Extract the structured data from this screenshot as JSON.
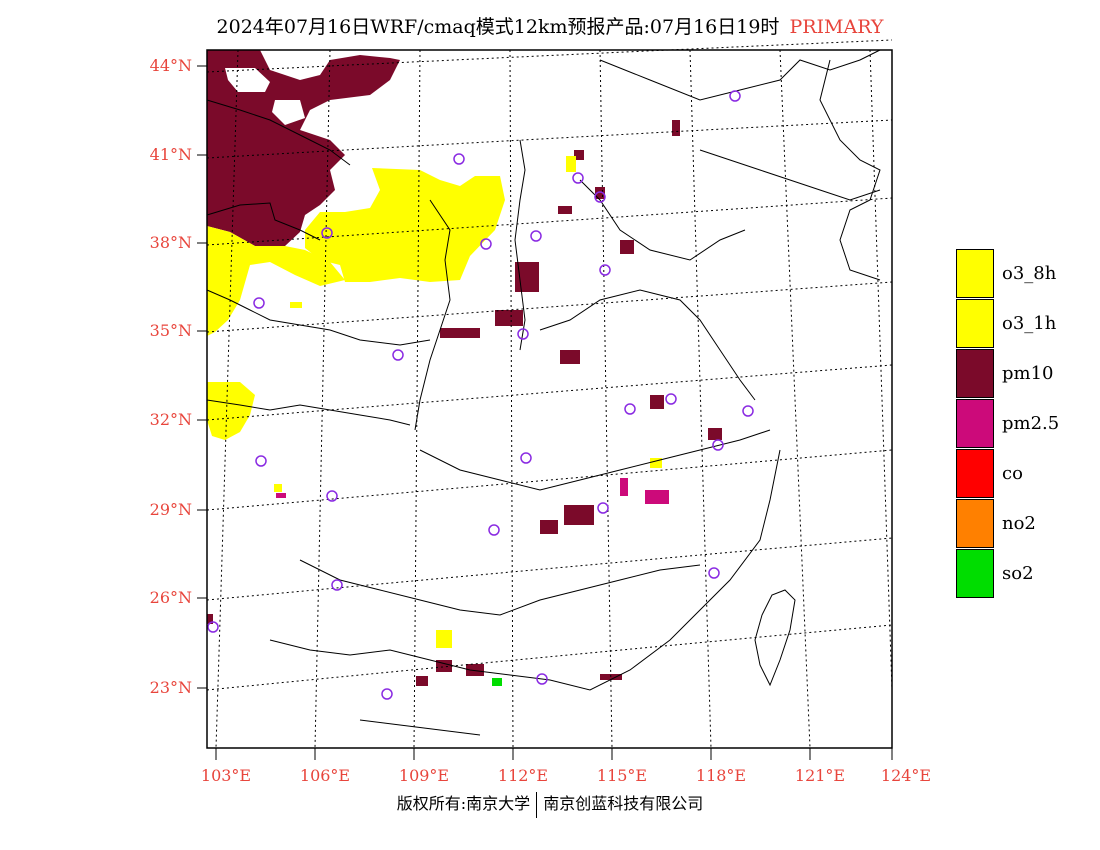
{
  "title": {
    "text": "2024年07月16日WRF/cmaq模式12km预报产品:07月16日19时",
    "tag": "PRIMARY"
  },
  "lat_labels": [
    "44°N",
    "41°N",
    "38°N",
    "35°N",
    "32°N",
    "29°N",
    "26°N",
    "23°N"
  ],
  "lon_labels": [
    "103°E",
    "106°E",
    "109°E",
    "112°E",
    "115°E",
    "118°E",
    "121°E",
    "124°E"
  ],
  "legend": [
    {
      "label": "o3_8h",
      "color": "#ffff00"
    },
    {
      "label": "o3_1h",
      "color": "#ffff00"
    },
    {
      "label": "pm10",
      "color": "#7b0a2a"
    },
    {
      "label": "pm2.5",
      "color": "#cc0a7a"
    },
    {
      "label": "co",
      "color": "#ff0000"
    },
    {
      "label": "no2",
      "color": "#ff8000"
    },
    {
      "label": "so2",
      "color": "#00dd00"
    }
  ],
  "footer": {
    "left": "版权所有:南京大学",
    "right": "南京创蓝科技有限公司"
  },
  "colors": {
    "label_red": "#e8453c",
    "station_circle": "#8a2be2"
  }
}
